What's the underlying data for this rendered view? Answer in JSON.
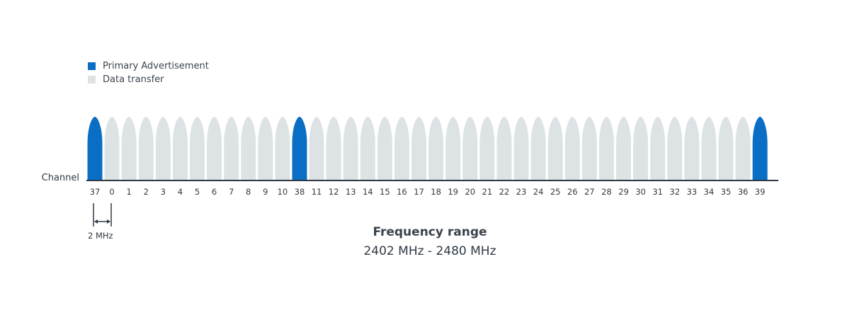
{
  "colors": {
    "primary": "#0a6ec4",
    "data": "#dde3e4",
    "axis": "#2f3a45"
  },
  "legend": {
    "primary_label": "Primary Advertisement",
    "data_label": "Data transfer"
  },
  "axis_label": "Channel",
  "channels": [
    {
      "label": "37",
      "type": "primary"
    },
    {
      "label": "0",
      "type": "data"
    },
    {
      "label": "1",
      "type": "data"
    },
    {
      "label": "2",
      "type": "data"
    },
    {
      "label": "3",
      "type": "data"
    },
    {
      "label": "4",
      "type": "data"
    },
    {
      "label": "5",
      "type": "data"
    },
    {
      "label": "6",
      "type": "data"
    },
    {
      "label": "7",
      "type": "data"
    },
    {
      "label": "8",
      "type": "data"
    },
    {
      "label": "9",
      "type": "data"
    },
    {
      "label": "10",
      "type": "data"
    },
    {
      "label": "38",
      "type": "primary"
    },
    {
      "label": "11",
      "type": "data"
    },
    {
      "label": "12",
      "type": "data"
    },
    {
      "label": "13",
      "type": "data"
    },
    {
      "label": "14",
      "type": "data"
    },
    {
      "label": "15",
      "type": "data"
    },
    {
      "label": "16",
      "type": "data"
    },
    {
      "label": "17",
      "type": "data"
    },
    {
      "label": "18",
      "type": "data"
    },
    {
      "label": "19",
      "type": "data"
    },
    {
      "label": "20",
      "type": "data"
    },
    {
      "label": "21",
      "type": "data"
    },
    {
      "label": "22",
      "type": "data"
    },
    {
      "label": "23",
      "type": "data"
    },
    {
      "label": "24",
      "type": "data"
    },
    {
      "label": "25",
      "type": "data"
    },
    {
      "label": "26",
      "type": "data"
    },
    {
      "label": "27",
      "type": "data"
    },
    {
      "label": "28",
      "type": "data"
    },
    {
      "label": "29",
      "type": "data"
    },
    {
      "label": "30",
      "type": "data"
    },
    {
      "label": "31",
      "type": "data"
    },
    {
      "label": "32",
      "type": "data"
    },
    {
      "label": "33",
      "type": "data"
    },
    {
      "label": "34",
      "type": "data"
    },
    {
      "label": "35",
      "type": "data"
    },
    {
      "label": "36",
      "type": "data"
    },
    {
      "label": "39",
      "type": "primary"
    }
  ],
  "spacing_label": "2 MHz",
  "frequency": {
    "title": "Frequency range",
    "range": "2402 MHz - 2480 MHz"
  }
}
